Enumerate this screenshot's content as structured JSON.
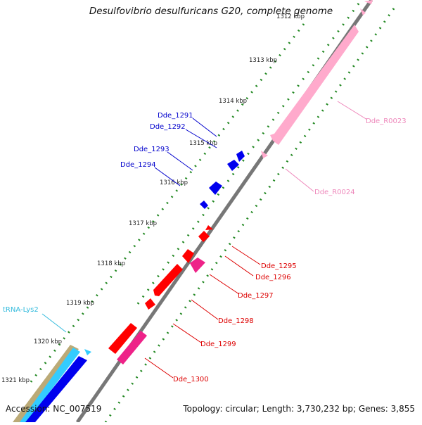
{
  "title": "Desulfovibrio desulfuricans G20, complete genome",
  "footer": {
    "accession": "Accession: NC_007519",
    "topology": "Topology: circular; Length: 3,730,232 bp; Genes: 3,855"
  },
  "ticks": [
    "1312 kbp",
    "1313 kbp",
    "1314 kbp",
    "1315 kbp",
    "1316 kbp",
    "1317 kbp",
    "1318 kbp",
    "1319 kbp",
    "1320 kbp",
    "1321 kbp"
  ],
  "gene_labels": [
    {
      "text": "Dde_1291",
      "color": "#0000cc"
    },
    {
      "text": "Dde_1292",
      "color": "#0000cc"
    },
    {
      "text": "Dde_1293",
      "color": "#0000cc"
    },
    {
      "text": "Dde_1294",
      "color": "#0000cc"
    },
    {
      "text": "Dde_R0023",
      "color": "#ee88bb"
    },
    {
      "text": "Dde_R0024",
      "color": "#ee88bb"
    },
    {
      "text": "Dde_1295",
      "color": "#dd0000"
    },
    {
      "text": "Dde_1296",
      "color": "#dd0000"
    },
    {
      "text": "Dde_1297",
      "color": "#dd0000"
    },
    {
      "text": "Dde_1298",
      "color": "#dd0000"
    },
    {
      "text": "Dde_1299",
      "color": "#dd0000"
    },
    {
      "text": "Dde_1300",
      "color": "#dd0000"
    },
    {
      "text": "tRNA-Lys2",
      "color": "#33bbdd"
    }
  ],
  "colors": {
    "backbone": "#777777",
    "tick_dots": "#228822",
    "cds_forward": "#ff0000",
    "cds_reverse": "#0000ee",
    "rrna": "#ffaacc",
    "trna": "#33ccff",
    "misc": "#ff3399",
    "olive": "#bbaa77"
  }
}
